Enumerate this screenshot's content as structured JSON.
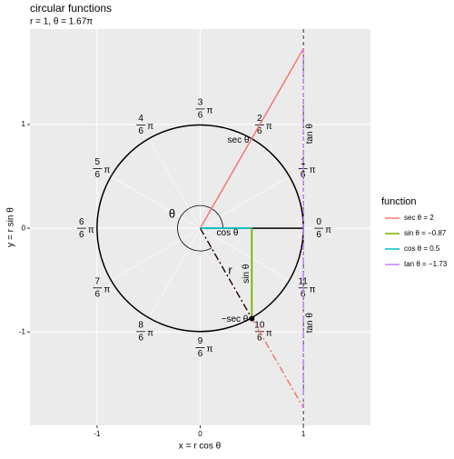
{
  "chart_data": {
    "type": "circular",
    "title": "circular functions",
    "subtitle": "r = 1, θ = 1.67π",
    "x_label": "x = r cos θ",
    "y_label": "y = r sin θ",
    "xlim": [
      -1.65,
      1.65
    ],
    "ylim": [
      -1.9,
      1.92
    ],
    "xticks": [
      -1,
      0,
      1
    ],
    "yticks": [
      -1,
      0,
      1
    ],
    "grid": true,
    "r": 1,
    "theta": 1.67,
    "angle_numerators": [
      "0",
      "1",
      "2",
      "3",
      "4",
      "5",
      "6",
      "7",
      "8",
      "9",
      "10",
      "11"
    ],
    "angle_denominator": "6",
    "pi_symbol": "π",
    "legend_title": "function",
    "series": [
      {
        "name": "sec θ = 2",
        "color": "#F8766D",
        "value": 2
      },
      {
        "name": "sin θ = −0.87",
        "color": "#7CAE00",
        "value": -0.87
      },
      {
        "name": "cos θ = 0.5",
        "color": "#00BFC4",
        "value": 0.5
      },
      {
        "name": "tan θ = −1.73",
        "color": "#C77CFF",
        "value": -1.73
      }
    ],
    "plot_labels": {
      "sec": "sec θ",
      "neg_sec": "−sec θ",
      "sin": "sin θ",
      "cos": "cos θ",
      "tan": "tan θ",
      "r": "r",
      "theta": "θ"
    }
  }
}
